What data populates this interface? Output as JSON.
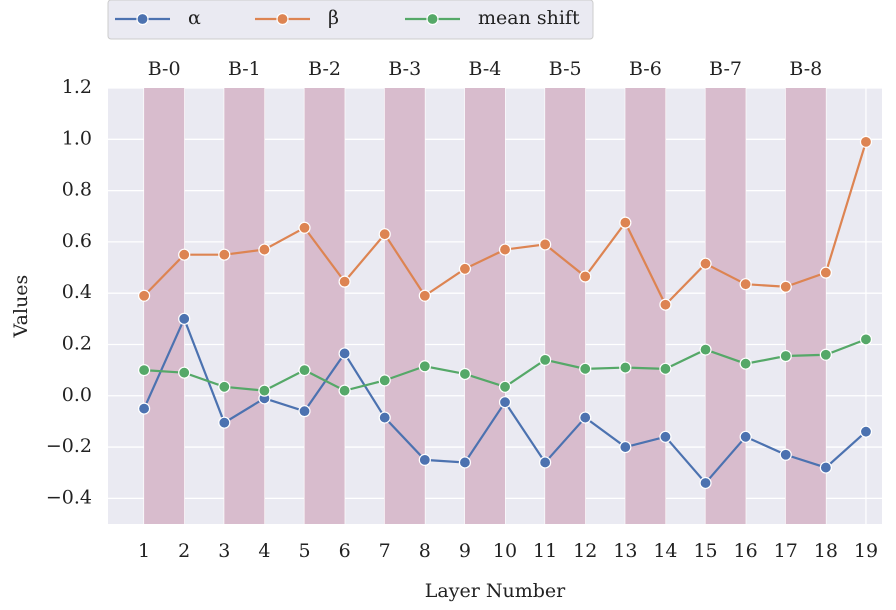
{
  "chart_data": {
    "type": "line",
    "xlabel": "Layer Number",
    "ylabel": "Values",
    "x": [
      1,
      2,
      3,
      4,
      5,
      6,
      7,
      8,
      9,
      10,
      11,
      12,
      13,
      14,
      15,
      16,
      17,
      18,
      19
    ],
    "series": [
      {
        "name": "α",
        "color": "#4c72b0",
        "values": [
          -0.05,
          0.3,
          -0.105,
          -0.01,
          -0.06,
          0.165,
          -0.085,
          -0.25,
          -0.26,
          -0.025,
          -0.26,
          -0.085,
          -0.2,
          -0.16,
          -0.34,
          -0.16,
          -0.23,
          -0.28,
          -0.14
        ]
      },
      {
        "name": "β",
        "color": "#dd8452",
        "values": [
          0.39,
          0.55,
          0.55,
          0.57,
          0.655,
          0.445,
          0.63,
          0.39,
          0.495,
          0.57,
          0.59,
          0.465,
          0.675,
          0.355,
          0.515,
          0.435,
          0.425,
          0.48,
          0.99
        ]
      },
      {
        "name": "mean shift",
        "color": "#55a868",
        "values": [
          0.1,
          0.09,
          0.035,
          0.02,
          0.1,
          0.02,
          0.06,
          0.115,
          0.085,
          0.035,
          0.14,
          0.105,
          0.11,
          0.105,
          0.18,
          0.125,
          0.155,
          0.16,
          0.22
        ]
      }
    ],
    "bands": [
      {
        "label": "B-0",
        "start": 1,
        "end": 2
      },
      {
        "label": "B-1",
        "start": 3,
        "end": 4
      },
      {
        "label": "B-2",
        "start": 5,
        "end": 6
      },
      {
        "label": "B-3",
        "start": 7,
        "end": 8
      },
      {
        "label": "B-4",
        "start": 9,
        "end": 10
      },
      {
        "label": "B-5",
        "start": 11,
        "end": 12
      },
      {
        "label": "B-6",
        "start": 13,
        "end": 14
      },
      {
        "label": "B-7",
        "start": 15,
        "end": 16
      },
      {
        "label": "B-8",
        "start": 17,
        "end": 18
      }
    ],
    "band_color": "#d8bccd",
    "xlim": [
      0.1,
      19.4
    ],
    "xticks": [
      1,
      2,
      3,
      4,
      5,
      6,
      7,
      8,
      9,
      10,
      11,
      12,
      13,
      14,
      15,
      16,
      17,
      18,
      19
    ],
    "ylim": [
      -0.5,
      1.2
    ],
    "yticks": [
      {
        "value": -0.4,
        "label": "−0.4"
      },
      {
        "value": -0.2,
        "label": "−0.2"
      },
      {
        "value": 0,
        "label": "0.0"
      },
      0.2,
      0.4,
      0.6,
      0.8,
      {
        "value": 1,
        "label": "1.0"
      },
      1.2
    ],
    "grid": true,
    "legend": "top-left"
  }
}
